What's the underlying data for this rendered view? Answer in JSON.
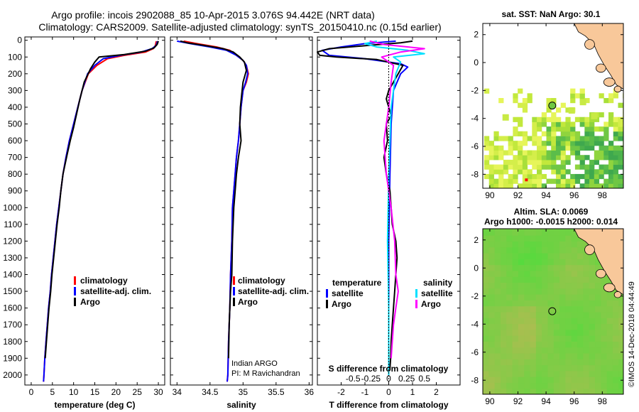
{
  "title": {
    "line1": "Argo profile: incois 2902088_85 10-Apr-2015 3.076S 94.442E (NRT data)",
    "line2": "Climatology: CARS2009. Satellite-adjusted climatology: synTS_20150410.nc (0.15d earlier)"
  },
  "credit": "©IMOS 14-Dec-2018 04:44:49",
  "colors": {
    "climatology": "#ff0000",
    "satellite": "#0000ff",
    "argo": "#000000",
    "satellite_salinity": "#00e0ff",
    "argo_salinity": "#ff00ff",
    "land": "#f8c89a"
  },
  "chart_data": [
    {
      "id": "temperature",
      "type": "line",
      "xlabel": "temperature (deg C)",
      "ylabel": "",
      "xlim": [
        -1.5,
        31.5
      ],
      "ylim": [
        2060,
        -20
      ],
      "xticks": [
        0,
        5,
        10,
        15,
        20,
        25,
        30
      ],
      "yticks": [
        0,
        100,
        200,
        300,
        400,
        500,
        600,
        700,
        800,
        900,
        1000,
        1100,
        1200,
        1300,
        1400,
        1500,
        1600,
        1700,
        1800,
        1900,
        2000
      ],
      "legend": [
        "climatology",
        "satellite-adj. clim.",
        "Argo"
      ],
      "series": [
        {
          "name": "climatology",
          "color": "#ff0000",
          "points": [
            [
              29.5,
              5
            ],
            [
              29.3,
              30
            ],
            [
              28.8,
              50
            ],
            [
              27,
              70
            ],
            [
              22,
              90
            ],
            [
              18,
              110
            ],
            [
              15.5,
              150
            ],
            [
              13.5,
              200
            ],
            [
              12,
              300
            ],
            [
              11,
              400
            ],
            [
              10,
              500
            ],
            [
              9,
              600
            ],
            [
              8.2,
              700
            ],
            [
              7.5,
              800
            ],
            [
              7,
              900
            ],
            [
              6.5,
              1000
            ],
            [
              6,
              1100
            ],
            [
              5.6,
              1200
            ],
            [
              5.2,
              1300
            ],
            [
              4.8,
              1400
            ],
            [
              4.5,
              1500
            ],
            [
              4.1,
              1600
            ],
            [
              3.8,
              1700
            ],
            [
              3.5,
              1800
            ],
            [
              3.2,
              1900
            ],
            [
              3,
              2000
            ],
            [
              2.9,
              2040
            ]
          ]
        },
        {
          "name": "satellite-adj. clim.",
          "color": "#0000ff",
          "points": [
            [
              29.8,
              5
            ],
            [
              29.5,
              30
            ],
            [
              28.5,
              50
            ],
            [
              26,
              70
            ],
            [
              21,
              90
            ],
            [
              17,
              110
            ],
            [
              15,
              150
            ],
            [
              13.3,
              200
            ],
            [
              12,
              300
            ],
            [
              11,
              400
            ],
            [
              10,
              500
            ],
            [
              9,
              600
            ],
            [
              8.2,
              700
            ],
            [
              7.5,
              800
            ],
            [
              7,
              900
            ],
            [
              6.5,
              1000
            ],
            [
              6,
              1100
            ],
            [
              5.6,
              1200
            ],
            [
              5.2,
              1300
            ],
            [
              4.8,
              1400
            ],
            [
              4.5,
              1500
            ],
            [
              4.1,
              1600
            ],
            [
              3.8,
              1700
            ],
            [
              3.5,
              1800
            ],
            [
              3.2,
              1900
            ],
            [
              3,
              2000
            ],
            [
              2.9,
              2040
            ]
          ]
        },
        {
          "name": "Argo",
          "color": "#000000",
          "points": [
            [
              30,
              5
            ],
            [
              29.7,
              25
            ],
            [
              29,
              45
            ],
            [
              27,
              65
            ],
            [
              22,
              85
            ],
            [
              16,
              100
            ],
            [
              15,
              130
            ],
            [
              14,
              170
            ],
            [
              12.5,
              250
            ],
            [
              11.5,
              350
            ],
            [
              10.8,
              430
            ],
            [
              10,
              520
            ],
            [
              9.2,
              600
            ],
            [
              8.5,
              680
            ],
            [
              7.5,
              800
            ],
            [
              7,
              900
            ],
            [
              6.6,
              1000
            ],
            [
              6.1,
              1100
            ],
            [
              5.7,
              1200
            ],
            [
              5.3,
              1300
            ],
            [
              4.9,
              1400
            ],
            [
              4.6,
              1500
            ],
            [
              4.2,
              1600
            ],
            [
              3.9,
              1700
            ],
            [
              3.6,
              1800
            ],
            [
              3.3,
              1900
            ]
          ]
        }
      ]
    },
    {
      "id": "salinity",
      "type": "line",
      "xlabel": "salinity",
      "xlim": [
        33.9,
        36.05
      ],
      "ylim": [
        2060,
        -20
      ],
      "xticks": [
        34,
        34.5,
        35,
        35.5,
        36
      ],
      "xtick_labels": [
        "34",
        "34.5",
        "35",
        "35.5",
        "36"
      ],
      "legend": [
        "climatology",
        "satellite-adj. clim.",
        "Argo"
      ],
      "annotation": [
        "Indian ARGO",
        "PI: M Ravichandran"
      ],
      "series": [
        {
          "name": "climatology",
          "color": "#ff0000",
          "points": [
            [
              34.1,
              5
            ],
            [
              34.3,
              20
            ],
            [
              34.6,
              40
            ],
            [
              34.8,
              60
            ],
            [
              34.9,
              90
            ],
            [
              35.0,
              120
            ],
            [
              35.05,
              150
            ],
            [
              35.08,
              200
            ],
            [
              35.05,
              250
            ],
            [
              35.0,
              300
            ],
            [
              34.97,
              400
            ],
            [
              34.95,
              500
            ],
            [
              34.93,
              600
            ],
            [
              34.9,
              700
            ],
            [
              34.88,
              800
            ],
            [
              34.86,
              900
            ],
            [
              34.84,
              1000
            ],
            [
              34.83,
              1200
            ],
            [
              34.81,
              1400
            ],
            [
              34.8,
              1600
            ],
            [
              34.78,
              1800
            ],
            [
              34.77,
              2000
            ],
            [
              34.76,
              2040
            ]
          ]
        },
        {
          "name": "satellite-adj. clim.",
          "color": "#0000ff",
          "points": [
            [
              34.0,
              5
            ],
            [
              34.2,
              20
            ],
            [
              34.5,
              40
            ],
            [
              34.75,
              60
            ],
            [
              34.9,
              90
            ],
            [
              35.0,
              120
            ],
            [
              35.05,
              150
            ],
            [
              35.07,
              200
            ],
            [
              35.04,
              250
            ],
            [
              35.0,
              300
            ],
            [
              34.97,
              400
            ],
            [
              34.95,
              500
            ],
            [
              34.93,
              600
            ],
            [
              34.9,
              700
            ],
            [
              34.88,
              800
            ],
            [
              34.86,
              900
            ],
            [
              34.84,
              1000
            ],
            [
              34.83,
              1200
            ],
            [
              34.81,
              1400
            ],
            [
              34.8,
              1600
            ],
            [
              34.78,
              1800
            ],
            [
              34.77,
              2000
            ],
            [
              34.76,
              2040
            ]
          ]
        },
        {
          "name": "Argo",
          "color": "#000000",
          "points": [
            [
              34.05,
              5
            ],
            [
              34.15,
              15
            ],
            [
              34.4,
              30
            ],
            [
              34.7,
              50
            ],
            [
              34.85,
              70
            ],
            [
              34.95,
              100
            ],
            [
              35.02,
              130
            ],
            [
              35.05,
              180
            ],
            [
              35.0,
              250
            ],
            [
              34.98,
              320
            ],
            [
              34.96,
              400
            ],
            [
              34.95,
              500
            ],
            [
              34.97,
              600
            ],
            [
              34.93,
              700
            ],
            [
              34.9,
              800
            ],
            [
              34.88,
              900
            ],
            [
              34.86,
              1000
            ],
            [
              34.84,
              1200
            ],
            [
              34.83,
              1400
            ],
            [
              34.81,
              1500
            ],
            [
              34.8,
              1600
            ],
            [
              34.79,
              1700
            ],
            [
              34.78,
              1900
            ]
          ]
        }
      ]
    },
    {
      "id": "difference",
      "type": "line",
      "xlabel": "T difference from climatology",
      "xlabel_top": "S difference from climatology",
      "xlim": [
        -3,
        3
      ],
      "ylim": [
        2060,
        -20
      ],
      "xticks": [
        -2,
        -1,
        0,
        1,
        2
      ],
      "xtick_labels": [
        "-2",
        "-1",
        "0",
        "1",
        "2"
      ],
      "sticks": [
        -1.5,
        -0.75,
        0,
        0.75,
        1.5
      ],
      "stick_labels": [
        "-0.5",
        "-0.25",
        "0",
        "0.25",
        "0.5"
      ],
      "legend_left_title": "temperature",
      "legend_right_title": "salinity",
      "legend_left": [
        "satellite",
        "Argo"
      ],
      "legend_right": [
        "satellite",
        "Argo"
      ],
      "series": [
        {
          "name": "T satellite",
          "color": "#0000ff",
          "points": [
            [
              0.3,
              5
            ],
            [
              -1,
              20
            ],
            [
              -2,
              40
            ],
            [
              -2.8,
              60
            ],
            [
              -2.5,
              90
            ],
            [
              -1,
              110
            ],
            [
              0.5,
              140
            ],
            [
              0.8,
              160
            ],
            [
              0.5,
              200
            ],
            [
              0.2,
              300
            ],
            [
              0.1,
              500
            ],
            [
              0.05,
              800
            ],
            [
              0,
              1200
            ],
            [
              0,
              1600
            ],
            [
              0,
              2000
            ]
          ]
        },
        {
          "name": "T Argo",
          "color": "#000000",
          "points": [
            [
              1,
              5
            ],
            [
              0.5,
              15
            ],
            [
              -0.8,
              30
            ],
            [
              -2.5,
              50
            ],
            [
              -3,
              70
            ],
            [
              -2.9,
              90
            ],
            [
              -2.2,
              100
            ],
            [
              -0.5,
              115
            ],
            [
              0.6,
              150
            ],
            [
              0.4,
              200
            ],
            [
              0.2,
              250
            ],
            [
              0,
              300
            ],
            [
              -0.1,
              350
            ],
            [
              0.1,
              450
            ],
            [
              -0.1,
              500
            ],
            [
              -0.05,
              600
            ],
            [
              -0.2,
              700
            ],
            [
              -0.1,
              800
            ],
            [
              0.05,
              900
            ],
            [
              0.1,
              1000
            ],
            [
              0.15,
              1100
            ],
            [
              0.3,
              1200
            ],
            [
              0.35,
              1300
            ],
            [
              0.3,
              1400
            ],
            [
              0.25,
              1500
            ],
            [
              0.2,
              1600
            ],
            [
              0.15,
              1700
            ],
            [
              0.1,
              1800
            ],
            [
              0.08,
              1900
            ],
            [
              0.05,
              1960
            ]
          ]
        },
        {
          "name": "S satellite",
          "color": "#00e0ff",
          "points": [
            [
              -0.5,
              5
            ],
            [
              -1,
              20
            ],
            [
              -0.5,
              40
            ],
            [
              0.8,
              60
            ],
            [
              1.5,
              80
            ],
            [
              0.2,
              100
            ],
            [
              0.5,
              130
            ],
            [
              0.3,
              200
            ],
            [
              0.1,
              400
            ],
            [
              0,
              800
            ],
            [
              -0.05,
              1200
            ],
            [
              0,
              1600
            ],
            [
              0,
              2000
            ]
          ]
        },
        {
          "name": "S Argo",
          "color": "#ff00ff",
          "points": [
            [
              -0.8,
              5
            ],
            [
              -0.2,
              25
            ],
            [
              1.5,
              50
            ],
            [
              0.5,
              70
            ],
            [
              -0.3,
              100
            ],
            [
              0.2,
              150
            ],
            [
              0.1,
              250
            ],
            [
              0,
              400
            ],
            [
              -0.2,
              600
            ],
            [
              -0.1,
              800
            ],
            [
              0.1,
              1000
            ],
            [
              0.25,
              1200
            ],
            [
              0.3,
              1400
            ],
            [
              0.4,
              1500
            ],
            [
              0.3,
              1600
            ],
            [
              0.2,
              1700
            ],
            [
              0.15,
              1800
            ],
            [
              0.1,
              1900
            ]
          ]
        }
      ]
    },
    {
      "id": "sst_map",
      "type": "heatmap",
      "title": "sat. SST: NaN Argo: 30.1",
      "xlim": [
        89.5,
        99.5
      ],
      "ylim": [
        -9,
        2.8
      ],
      "xticks": [
        90,
        92,
        94,
        96,
        98
      ],
      "yticks": [
        2,
        0,
        -2,
        -4,
        -6,
        -8
      ],
      "argo_position": [
        94.44,
        -3.08
      ],
      "argo_value": 30.1
    },
    {
      "id": "sla_map",
      "type": "heatmap",
      "title": "Altim. SLA: 0.0069",
      "subtitle": "Argo h1000: -0.0015 h2000: 0.014",
      "xlim": [
        89.5,
        99.5
      ],
      "ylim": [
        -9,
        2.8
      ],
      "xticks": [
        90,
        92,
        94,
        96,
        98
      ],
      "yticks": [
        2,
        0,
        -2,
        -4,
        -6,
        -8
      ],
      "argo_position": [
        94.44,
        -3.08
      ],
      "sla": 0.0069,
      "h1000": -0.0015,
      "h2000": 0.014
    }
  ]
}
